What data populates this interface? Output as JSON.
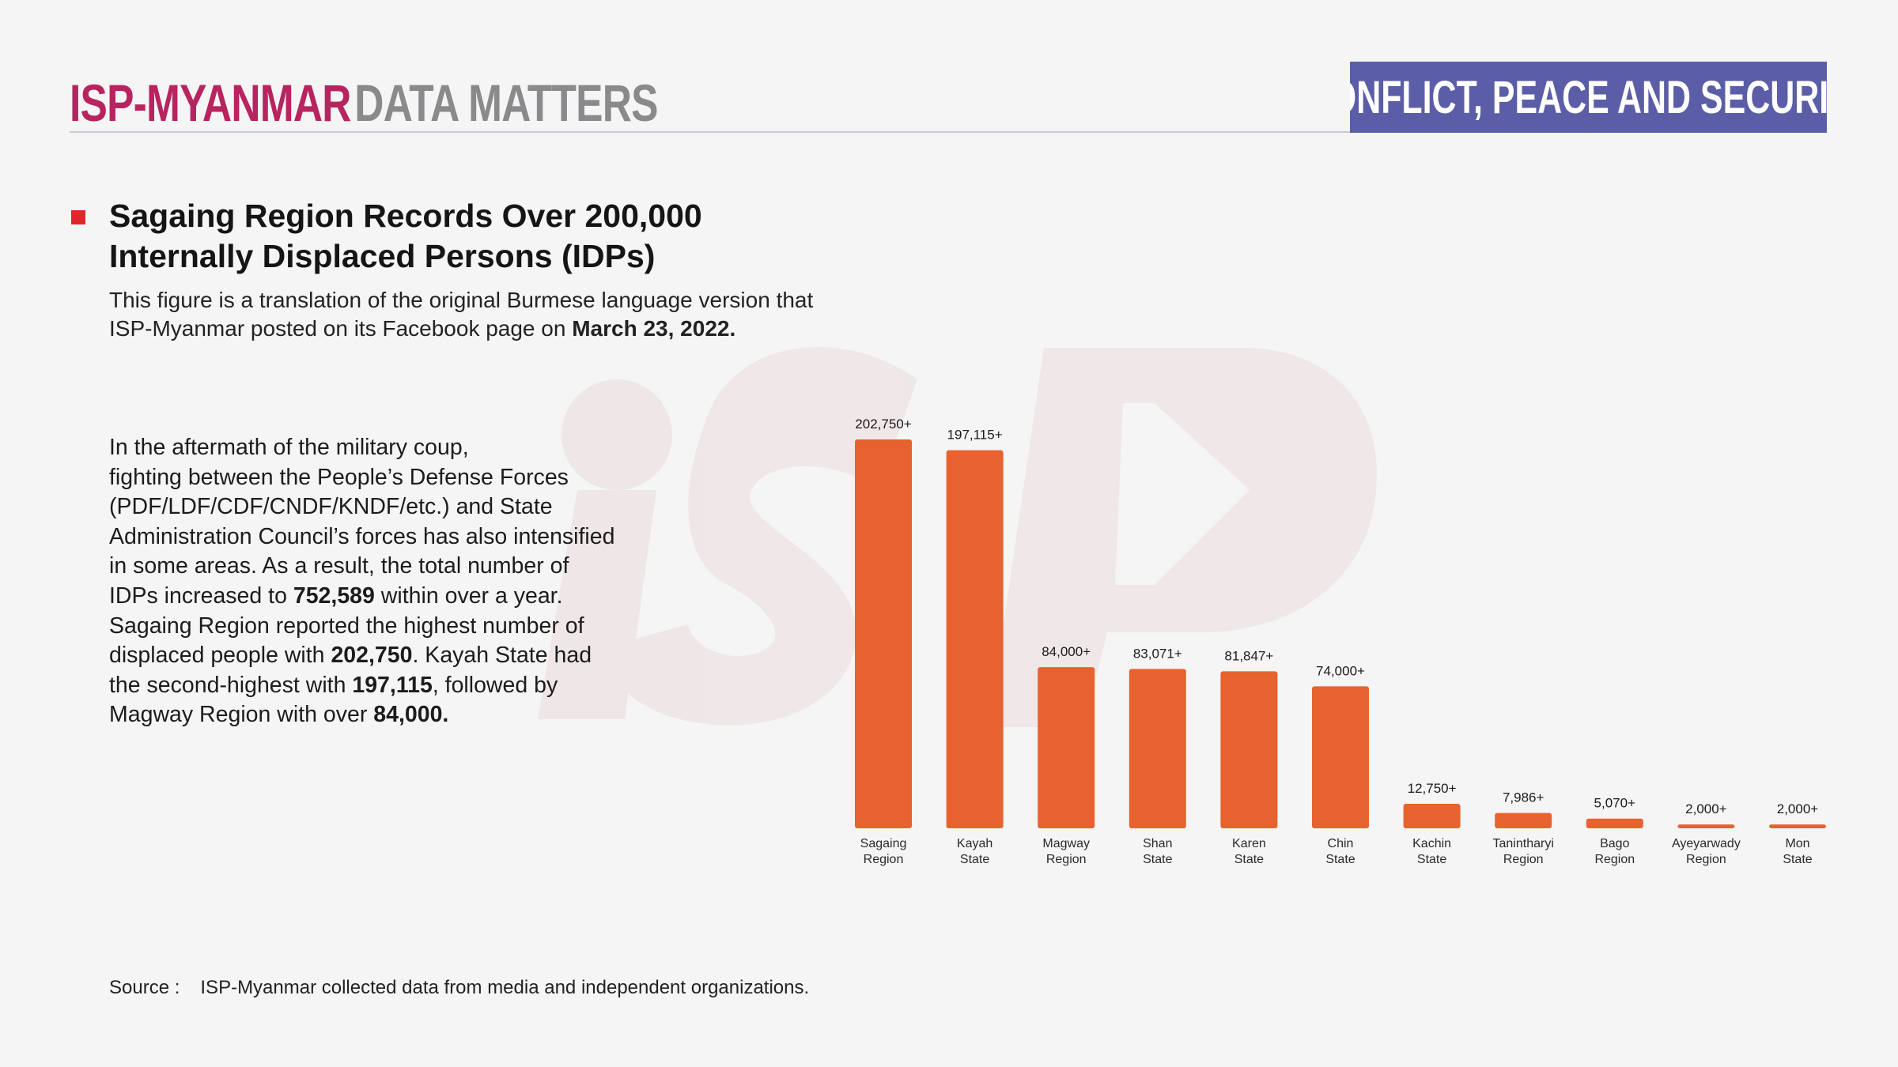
{
  "header": {
    "brand_primary": "ISP-MYANMAR",
    "brand_secondary": "DATA MATTERS",
    "section": "CONFLICT, PEACE AND SECURITY"
  },
  "colors": {
    "brand_magenta": "#b8245f",
    "brand_gray": "#8a8a8d",
    "section_purple": "#5b5ea6",
    "bullet_red": "#e0262b",
    "bar_orange": "#e8622f"
  },
  "title": {
    "line1": "Sagaing Region Records Over 200,000",
    "line2": "Internally Displaced Persons (IDPs)"
  },
  "subtitle": {
    "line1": "This figure is a translation of the original Burmese language version that",
    "line2_prefix": "ISP-Myanmar posted on its Facebook page on ",
    "date": "March 23, 2022."
  },
  "body": {
    "l1": "In the aftermath of the military coup,",
    "l2": "fighting between the People’s Defense Forces",
    "l3": "(PDF/LDF/CDF/CNDF/KNDF/etc.) and State",
    "l4": "Administration Council’s forces has also intensified",
    "l5": "in some areas. As a result, the total number of",
    "l6a": "IDPs increased to ",
    "l6b": "752,589",
    "l6c": " within over a year.",
    "l7": "Sagaing Region reported the highest number of",
    "l8a": "displaced people with ",
    "l8b": "202,750",
    "l8c": ". Kayah State had",
    "l9a": "the second-highest with ",
    "l9b": "197,115",
    "l9c": ", followed by",
    "l10a": "Magway Region with over ",
    "l10b": "84,000."
  },
  "source": {
    "label": "Source :",
    "text": "ISP-Myanmar collected data from media and independent organizations."
  },
  "chart_data": {
    "type": "bar",
    "title": "Sagaing Region Records Over 200,000 Internally Displaced Persons (IDPs)",
    "categories": [
      [
        "Sagaing",
        "Region"
      ],
      [
        "Kayah",
        "State"
      ],
      [
        "Magway",
        "Region"
      ],
      [
        "Shan",
        "State"
      ],
      [
        "Karen",
        "State"
      ],
      [
        "Chin",
        "State"
      ],
      [
        "Kachin",
        "State"
      ],
      [
        "Tanintharyi",
        "Region"
      ],
      [
        "Bago",
        "Region"
      ],
      [
        "Ayeyarwady",
        "Region"
      ],
      [
        "Mon",
        "State"
      ]
    ],
    "values": [
      202750,
      197115,
      84000,
      83071,
      81847,
      74000,
      12750,
      7986,
      5070,
      2000,
      2000
    ],
    "value_labels": [
      "202,750+",
      "197,115+",
      "84,000+",
      "83,071+",
      "81,847+",
      "74,000+",
      "12,750+",
      "7,986+",
      "5,070+",
      "2,000+",
      "2,000+"
    ],
    "xlabel": "",
    "ylabel": "",
    "ylim": [
      0,
      202750
    ],
    "grid": false,
    "legend": "none"
  }
}
